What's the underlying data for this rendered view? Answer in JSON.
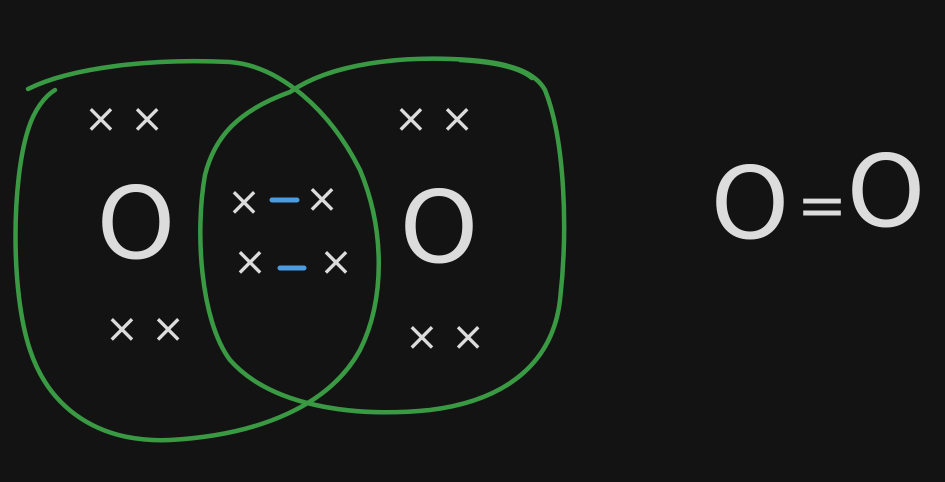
{
  "diagram": {
    "left_atom": {
      "symbol": "O",
      "lone_pair_top": "× ×",
      "lone_pair_bottom": "× ×"
    },
    "right_atom": {
      "symbol": "O",
      "lone_pair_top": "× ×",
      "lone_pair_bottom": "× ×"
    },
    "shared_bonds": [
      {
        "left": "×",
        "bond": "—",
        "right": "×"
      },
      {
        "left": "×",
        "bond": "—",
        "right": "×"
      }
    ],
    "structural_formula": {
      "atom_left": "O",
      "bond": "=",
      "atom_right": "O"
    },
    "colors": {
      "background": "#131313",
      "chalk": "#dcdcdc",
      "shell": "#3a9a44",
      "bond_highlight": "#4a9be0"
    }
  }
}
